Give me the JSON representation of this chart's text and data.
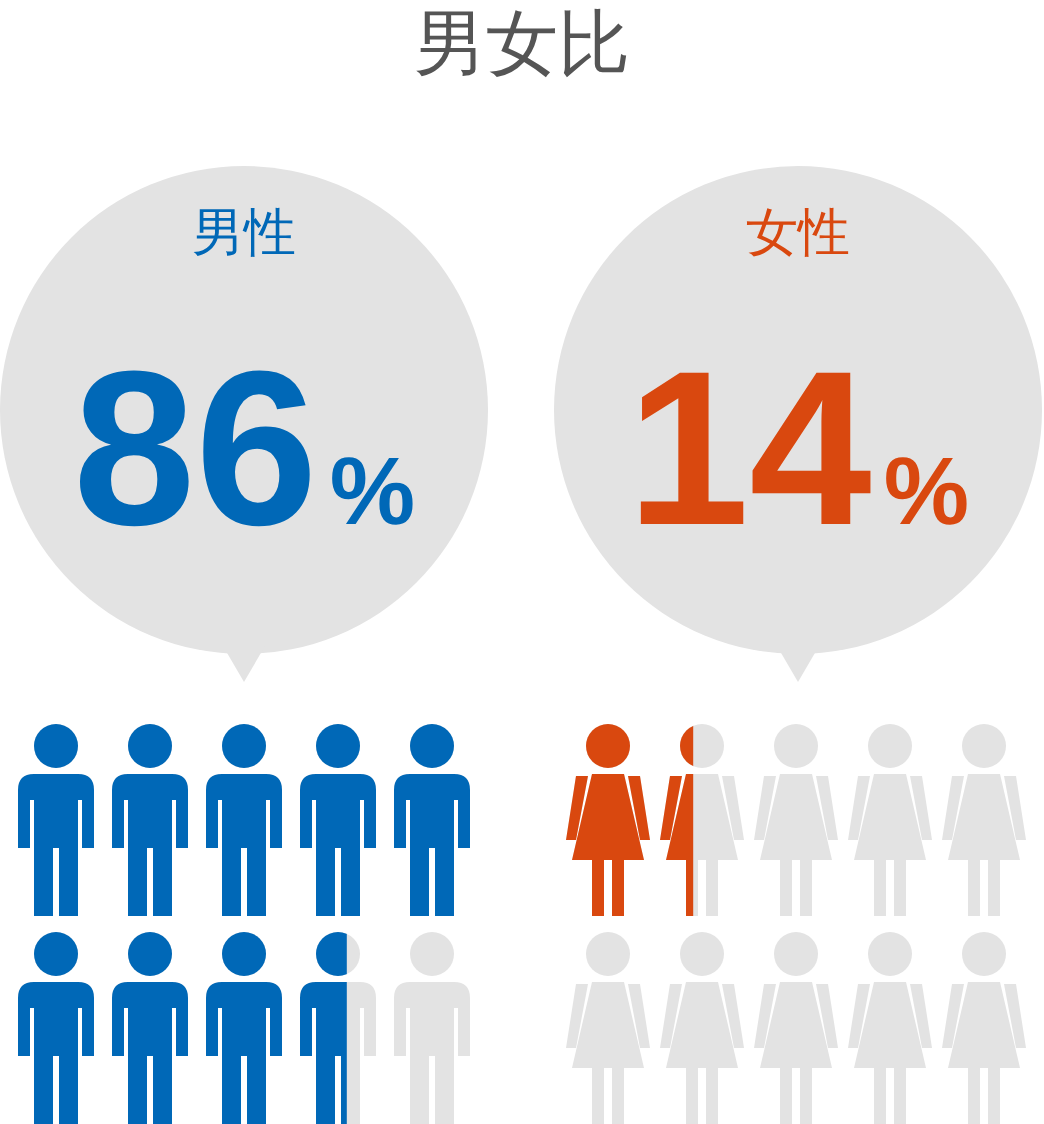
{
  "chart_data": {
    "type": "other",
    "title": "男女比",
    "categories": [
      "男性",
      "女性"
    ],
    "values": [
      86,
      14
    ],
    "value_labels": [
      "86%",
      "14%"
    ]
  }
}
